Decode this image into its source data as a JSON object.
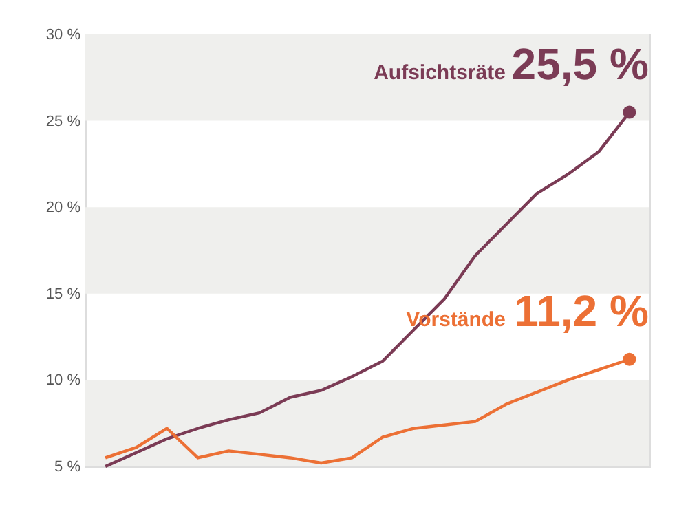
{
  "chart_data": {
    "type": "line",
    "categories": [
      null,
      null,
      null,
      null,
      null,
      null,
      null,
      null,
      null,
      null,
      null,
      null,
      null,
      null,
      null,
      null,
      null,
      null
    ],
    "series": [
      {
        "name": "Aufsichtsräte",
        "color": "#7b3b55",
        "values": [
          5.0,
          5.8,
          6.6,
          7.2,
          7.7,
          8.1,
          9.0,
          9.4,
          10.2,
          11.1,
          12.9,
          14.7,
          17.2,
          19.0,
          20.8,
          21.9,
          23.2,
          25.5
        ],
        "value_labels": [
          null,
          null,
          null,
          null,
          null,
          null,
          null,
          null,
          null,
          null,
          null,
          null,
          null,
          null,
          null,
          null,
          null,
          "25,5 %"
        ]
      },
      {
        "name": "Vorstände",
        "color": "#ec7035",
        "values": [
          5.5,
          6.1,
          7.2,
          5.5,
          5.9,
          5.7,
          5.5,
          5.2,
          5.5,
          6.7,
          7.2,
          7.4,
          7.6,
          8.6,
          9.3,
          10.0,
          10.6,
          11.2
        ],
        "value_labels": [
          null,
          null,
          null,
          null,
          null,
          null,
          null,
          null,
          null,
          null,
          null,
          null,
          null,
          null,
          null,
          null,
          null,
          "11,2 %"
        ]
      }
    ],
    "ylim": [
      5,
      30
    ],
    "yticks": [
      {
        "value": 5,
        "label": "5 %"
      },
      {
        "value": 10,
        "label": "10 %"
      },
      {
        "value": 15,
        "label": "15 %"
      },
      {
        "value": 20,
        "label": "20 %"
      },
      {
        "value": 25,
        "label": "25 %"
      },
      {
        "value": 30,
        "label": "30 %"
      }
    ],
    "bands": [
      {
        "axis": "y",
        "from": 25,
        "to": 30,
        "color": "#efefed"
      },
      {
        "axis": "y",
        "from": 15,
        "to": 20,
        "color": "#efefed"
      },
      {
        "axis": "y",
        "from": 5,
        "to": 10,
        "color": "#efefed"
      }
    ],
    "legend": false,
    "line_style": "solid"
  }
}
